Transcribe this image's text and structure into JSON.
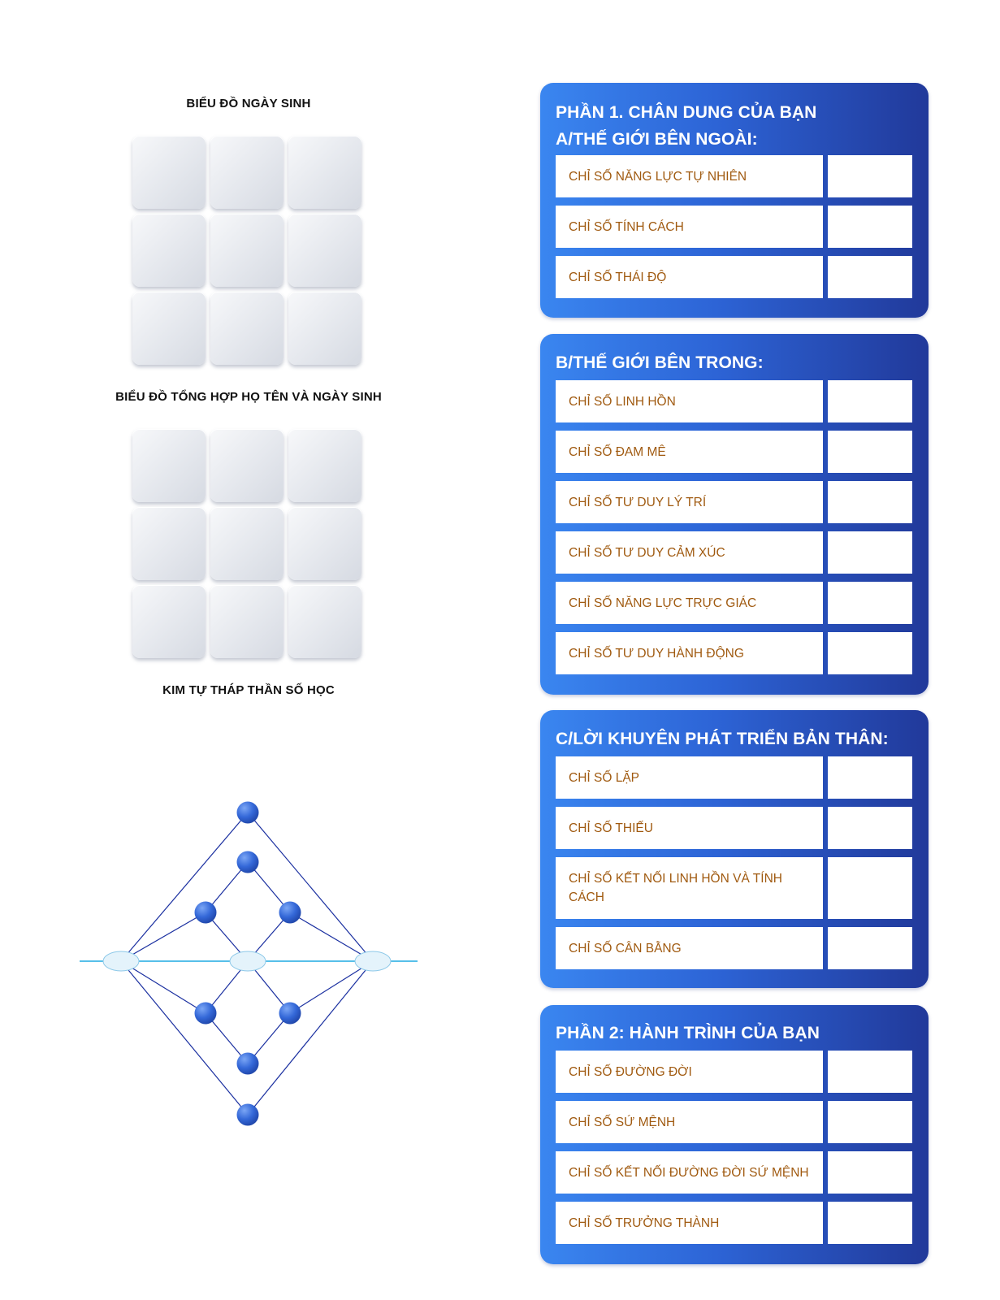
{
  "left": {
    "birth_chart_title": "BIỂU ĐỒ NGÀY SINH",
    "combined_chart_title": "BIỂU ĐỒ TỔNG HỢP HỌ TÊN VÀ NGÀY SINH",
    "pyramid_title": "KIM TỰ THÁP THẦN SỐ HỌC"
  },
  "panels": {
    "p1": {
      "heading_1": "PHẦN 1. CHÂN DUNG CỦA BẠN",
      "heading_2": "A/THẾ GIỚI BÊN NGOÀI:",
      "rows": [
        "CHỈ SỐ NĂNG LỰC TỰ NHIÊN",
        "CHỈ SỐ TÍNH CÁCH",
        "CHỈ SỐ THÁI ĐỘ"
      ]
    },
    "p2": {
      "heading": "B/THẾ GIỚI BÊN TRONG:",
      "rows": [
        "CHỈ SỐ LINH HỒN",
        "CHỈ SỐ ĐAM MÊ",
        "CHỈ SỐ TƯ DUY LÝ TRÍ",
        "CHỈ SỐ TƯ DUY CẢM XÚC",
        "CHỈ SỐ NĂNG LỰC TRỰC GIÁC",
        "CHỈ SỐ TƯ DUY HÀNH ĐỘNG"
      ]
    },
    "p3": {
      "heading": "C/LỜI KHUYÊN PHÁT TRIỂN BẢN THÂN:",
      "rows": [
        "CHỈ SỐ LẶP",
        "CHỈ SỐ THIẾU",
        "CHỈ SỐ KẾT NỐI LINH HỒN VÀ TÍNH CÁCH",
        "CHỈ SỐ CÂN BẰNG"
      ]
    },
    "p4": {
      "heading": "PHẦN 2: HÀNH TRÌNH CỦA BẠN",
      "rows": [
        "CHỈ SỐ ĐƯỜNG ĐỜI",
        "CHỈ SỐ SỨ MỆNH",
        "CHỈ SỐ KẾT NỐI ĐƯỜNG ĐỜI SỨ MỆNH",
        "CHỈ SỐ TRƯỞNG THÀNH"
      ]
    }
  },
  "colors": {
    "panel_light": "#3a86f0",
    "panel_dark": "#21399a",
    "label_text": "#a05a10",
    "node_blue": "#2f63d6",
    "axis_cyan": "#3fb6e6"
  }
}
